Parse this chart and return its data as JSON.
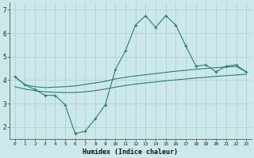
{
  "x": [
    0,
    1,
    2,
    3,
    4,
    5,
    6,
    7,
    8,
    9,
    10,
    11,
    12,
    13,
    14,
    15,
    16,
    17,
    18,
    19,
    20,
    21,
    22,
    23
  ],
  "line_zigzag": [
    4.15,
    3.8,
    3.6,
    3.35,
    3.35,
    2.95,
    1.72,
    1.82,
    2.35,
    2.95,
    4.45,
    5.25,
    6.35,
    6.75,
    6.25,
    6.75,
    6.35,
    5.45,
    4.6,
    4.65,
    4.35,
    4.6,
    4.65,
    4.35
  ],
  "line_upper": [
    4.15,
    3.8,
    3.72,
    3.68,
    3.7,
    3.72,
    3.75,
    3.82,
    3.88,
    3.95,
    4.05,
    4.12,
    4.18,
    4.23,
    4.28,
    4.33,
    4.38,
    4.42,
    4.46,
    4.5,
    4.53,
    4.56,
    4.58,
    4.35
  ],
  "line_lower": [
    3.72,
    3.62,
    3.55,
    3.5,
    3.48,
    3.47,
    3.47,
    3.5,
    3.55,
    3.62,
    3.7,
    3.77,
    3.83,
    3.88,
    3.92,
    3.97,
    4.01,
    4.05,
    4.09,
    4.12,
    4.16,
    4.19,
    4.22,
    4.25
  ],
  "color": "#2e7d6e",
  "bg_color": "#cce8ea",
  "grid_major_color": "#a8cfd2",
  "grid_minor_color": "#bcdde0",
  "xlabel": "Humidex (Indice chaleur)",
  "ylim": [
    1.5,
    7.3
  ],
  "xlim": [
    -0.5,
    23.5
  ],
  "yticks": [
    2,
    3,
    4,
    5,
    6,
    7
  ],
  "xticks": [
    0,
    1,
    2,
    3,
    4,
    5,
    6,
    7,
    8,
    9,
    10,
    11,
    12,
    13,
    14,
    15,
    16,
    17,
    18,
    19,
    20,
    21,
    22,
    23
  ]
}
